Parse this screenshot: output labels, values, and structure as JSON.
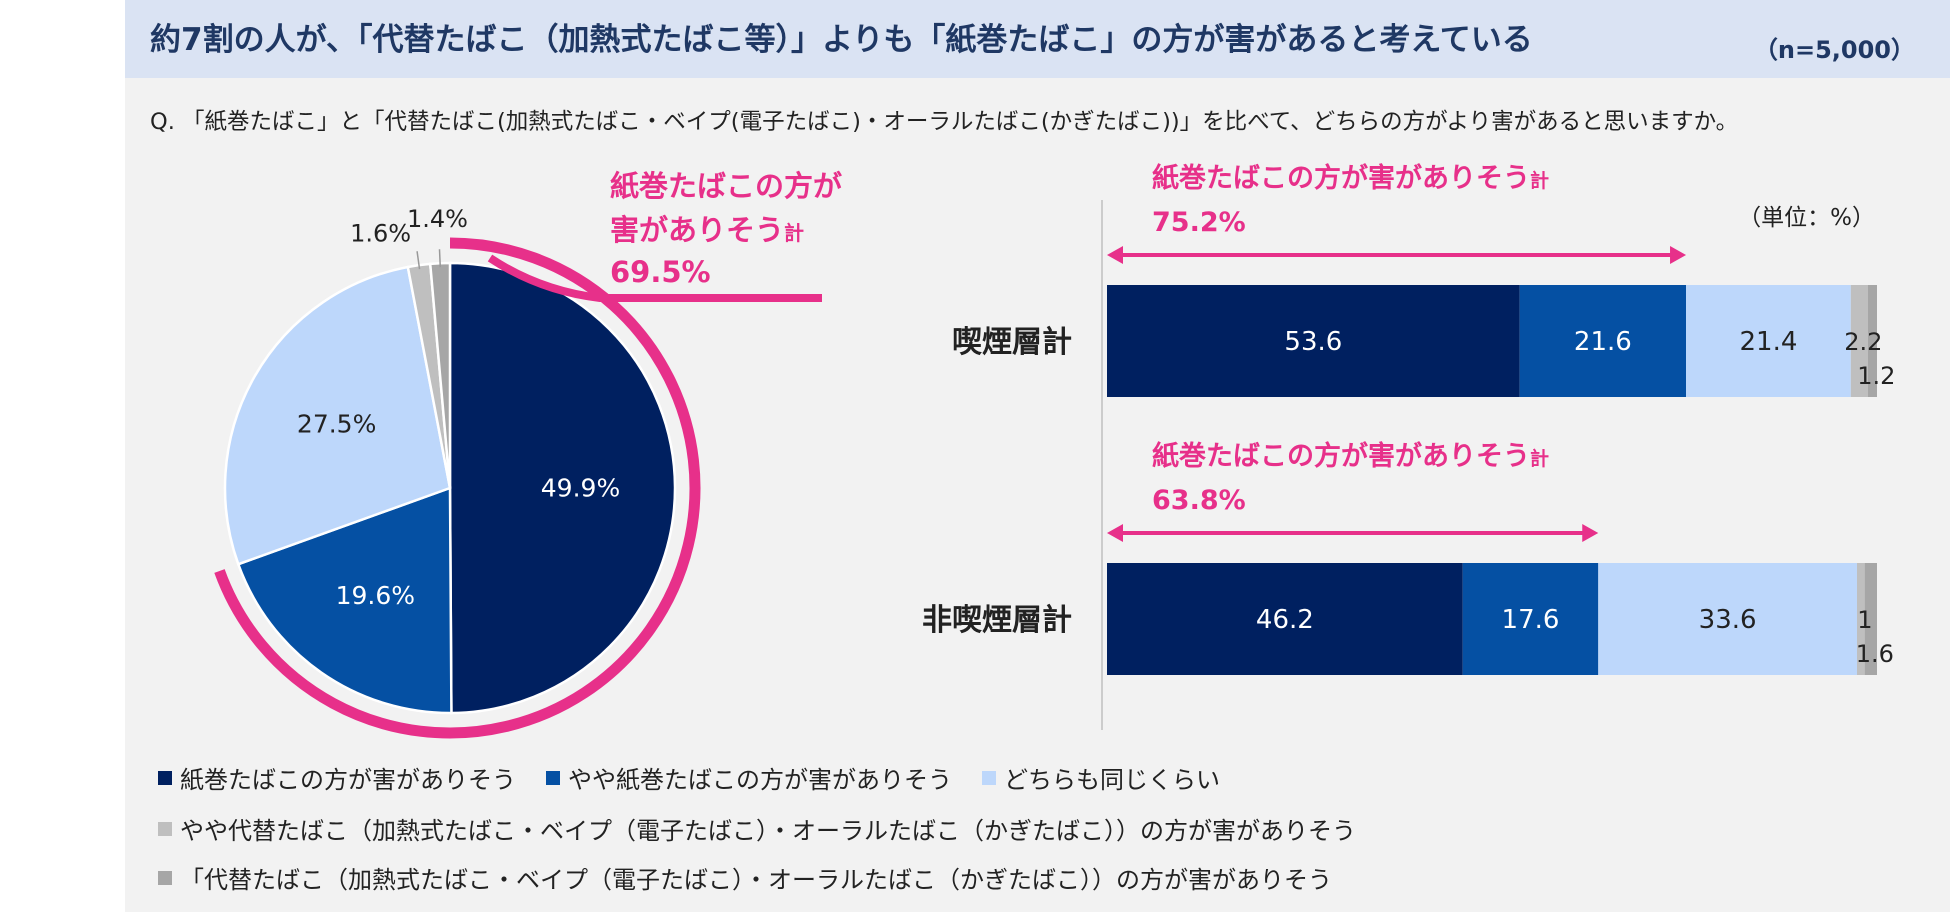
{
  "header": {
    "headline": "約7割の人が、「代替たばこ（加熱式たばこ等）」よりも「紙巻たばこ」の方が害があると考えている",
    "sample": "（n=5,000）"
  },
  "question": "Q. 「紙巻たばこ」と「代替たばこ(加熱式たばこ・ベイプ(電子たばこ)・オーラルたばこ(かぎたばこ))」を比べて、どちらの方がより害があると思いますか。",
  "colors": {
    "much_cigarette": "#002060",
    "some_cigarette": "#0550a3",
    "same": "#bdd7fb",
    "some_alt": "#bfbfbf",
    "much_alt": "#a6a6a6",
    "accent": "#e7308a"
  },
  "pie_total": {
    "label_line1": "紙巻たばこの方が",
    "label_line2_main": "害がありそう",
    "label_line2_small": "計",
    "value": "69.5%"
  },
  "bar_unit": "（単位：%）",
  "bar_totals": [
    {
      "label_main": "紙巻たばこの方が害がありそう",
      "label_small": "計",
      "value": "75.2%"
    },
    {
      "label_main": "紙巻たばこの方が害がありそう",
      "label_small": "計",
      "value": "63.8%"
    }
  ],
  "legend": {
    "row1": [
      "紙巻たばこの方が害がありそう",
      "やや紙巻たばこの方が害がありそう",
      "どちらも同じくらい"
    ],
    "row2": "やや代替たばこ（加熱式たばこ・ベイプ（電子たばこ）・オーラルたばこ（かぎたばこ））の方が害がありそう",
    "row3": "「代替たばこ（加熱式たばこ・ベイプ（電子たばこ）・オーラルたばこ（かぎたばこ））の方が害がありそう"
  },
  "chart_data": [
    {
      "type": "pie",
      "slices": [
        {
          "category": "紙巻たばこの方が害がありそう",
          "value": 49.9,
          "label": "49.9%"
        },
        {
          "category": "やや紙巻たばこの方が害がありそう",
          "value": 19.6,
          "label": "19.6%"
        },
        {
          "category": "どちらも同じくらい",
          "value": 27.5,
          "label": "27.5%"
        },
        {
          "category": "やや代替たばこ（加熱式たばこ・ベイプ（電子たばこ）・オーラルたばこ（かぎたばこ））の方が害がありそう",
          "value": 1.6,
          "label": "1.6%"
        },
        {
          "category": "「代替たばこ（加熱式たばこ・ベイプ（電子たばこ）・オーラルたばこ（かぎたばこ））の方が害がありそう",
          "value": 1.4,
          "label": "1.4%"
        }
      ]
    },
    {
      "type": "bar",
      "orientation": "horizontal",
      "stacked": true,
      "categories": [
        "喫煙層計",
        "非喫煙層計"
      ],
      "series": [
        {
          "name": "紙巻たばこの方が害がありそう",
          "values": [
            53.6,
            46.2
          ]
        },
        {
          "name": "やや紙巻たばこの方が害がありそう",
          "values": [
            21.6,
            17.6
          ]
        },
        {
          "name": "どちらも同じくらい",
          "values": [
            21.4,
            33.6
          ]
        },
        {
          "name": "やや代替たばこ（加熱式たばこ・ベイプ（電子たばこ）・オーラルたばこ（かぎたばこ））の方が害がありそう",
          "values": [
            2.2,
            1.0
          ]
        },
        {
          "name": "「代替たばこ（加熱式たばこ・ベイプ（電子たばこ）・オーラルたばこ（かぎたばこ））の方が害がありそう",
          "values": [
            1.2,
            1.6
          ]
        }
      ],
      "xlim": [
        0,
        100
      ]
    }
  ]
}
